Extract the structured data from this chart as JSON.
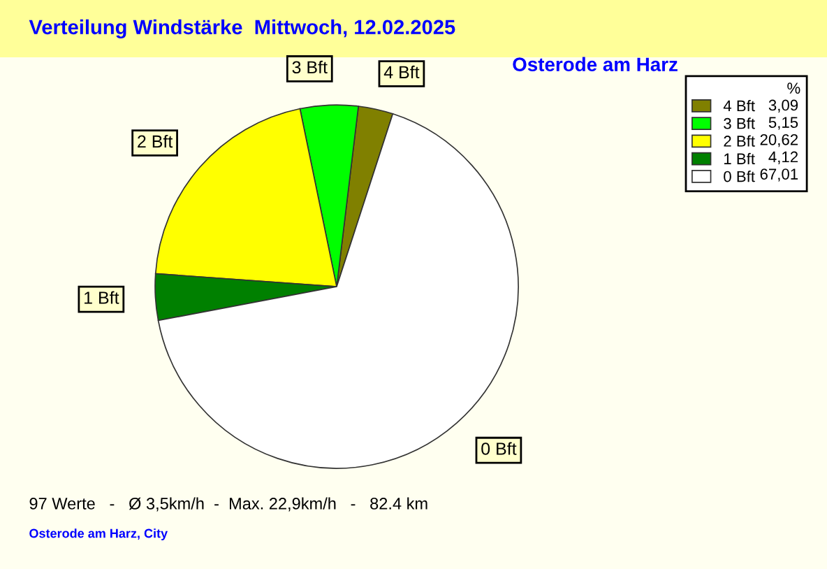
{
  "chart_data": {
    "type": "pie",
    "title": "Verteilung Windstärke  Mittwoch, 12.02.2025",
    "subtitle": "Osterode am Harz",
    "categories": [
      "4 Bft",
      "3 Bft",
      "2 Bft",
      "1 Bft",
      "0 Bft"
    ],
    "values": [
      3.09,
      5.15,
      20.62,
      4.12,
      67.01
    ],
    "value_labels": [
      "3,09",
      "5,15",
      "20,62",
      "4,12",
      "67,01"
    ],
    "colors": [
      "#808000",
      "#00ff00",
      "#ffff00",
      "#008000",
      "#ffffff"
    ],
    "legend": "top right",
    "legend_title": "%",
    "annotations": [
      "97 Werte   -   Ø 3,5km/h  -  Max. 22,9km/h   -   82.4 km",
      "Osterode am Harz, City"
    ]
  }
}
